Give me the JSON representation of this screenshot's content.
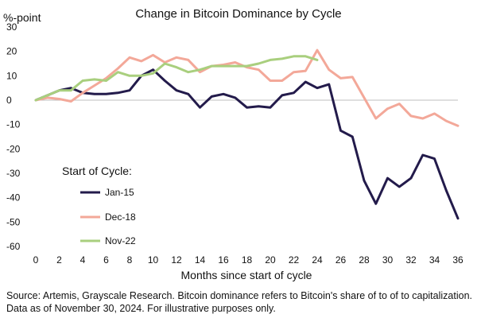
{
  "chart_data": {
    "type": "line",
    "title": "Change in Bitcoin Dominance by Cycle",
    "ylabel": "%-point",
    "xlabel": "Months since start of cycle",
    "xlim": [
      0,
      36
    ],
    "ylim": [
      -60,
      30
    ],
    "xticks": [
      0,
      2,
      4,
      6,
      8,
      10,
      12,
      14,
      16,
      18,
      20,
      22,
      24,
      26,
      28,
      30,
      32,
      34,
      36
    ],
    "yticks": [
      30,
      20,
      10,
      0,
      -10,
      -20,
      -30,
      -40,
      -50,
      -60
    ],
    "grid": false,
    "legend": {
      "title": "Start of Cycle:",
      "placement": "left"
    },
    "series": [
      {
        "name": "Jan-15",
        "color": "#231b4b",
        "x": [
          0,
          1,
          2,
          3,
          4,
          5,
          6,
          7,
          8,
          9,
          10,
          11,
          12,
          13,
          14,
          15,
          16,
          17,
          18,
          19,
          20,
          21,
          22,
          23,
          24,
          25,
          26,
          27,
          28,
          29,
          30,
          31,
          32,
          33,
          34,
          35,
          36
        ],
        "values": [
          0,
          2,
          4,
          5,
          3,
          2.5,
          2.5,
          3,
          4,
          10,
          12.5,
          8,
          4,
          2.5,
          -3,
          1.5,
          2.5,
          1,
          -3,
          -2.5,
          -3,
          2,
          3,
          7.5,
          5,
          6.5,
          -12.5,
          -15,
          -33,
          -42.5,
          -32,
          -35.5,
          -32,
          -22.5,
          -24,
          -37,
          -48.5
        ]
      },
      {
        "name": "Dec-18",
        "color": "#f3a899",
        "x": [
          0,
          1,
          2,
          3,
          4,
          5,
          6,
          7,
          8,
          9,
          10,
          11,
          12,
          13,
          14,
          15,
          16,
          17,
          18,
          19,
          20,
          21,
          22,
          23,
          24,
          25,
          26,
          27,
          28,
          29,
          30,
          31,
          32,
          33,
          34,
          35,
          36
        ],
        "values": [
          0,
          1,
          0.5,
          -0.5,
          3,
          6,
          9,
          13,
          17.5,
          16,
          18.5,
          15.5,
          17.5,
          16.5,
          11.5,
          14,
          14.5,
          15.5,
          13.5,
          12.5,
          8,
          8,
          11.5,
          12,
          20.5,
          12.5,
          9,
          9.5,
          1,
          -7.5,
          -3.5,
          -1.5,
          -6.5,
          -7.5,
          -5.5,
          -8.5,
          -10.5
        ]
      },
      {
        "name": "Nov-22",
        "color": "#a9cf7e",
        "x": [
          0,
          1,
          2,
          3,
          4,
          5,
          6,
          7,
          8,
          9,
          10,
          11,
          12,
          13,
          14,
          15,
          16,
          17,
          18,
          19,
          20,
          21,
          22,
          23,
          24
        ],
        "values": [
          0,
          2,
          4,
          4,
          8,
          8.5,
          8,
          11.5,
          10,
          10,
          11,
          15,
          13.5,
          11.5,
          12.5,
          14,
          14,
          14,
          14,
          15,
          16.5,
          17,
          18,
          18,
          16.5
        ]
      }
    ]
  },
  "source_note": "Source: Artemis, Grayscale Research. Bitcoin dominance refers to Bitcoin's share of to of to capitalization. Data as of November 30, 2024. For illustrative purposes only."
}
